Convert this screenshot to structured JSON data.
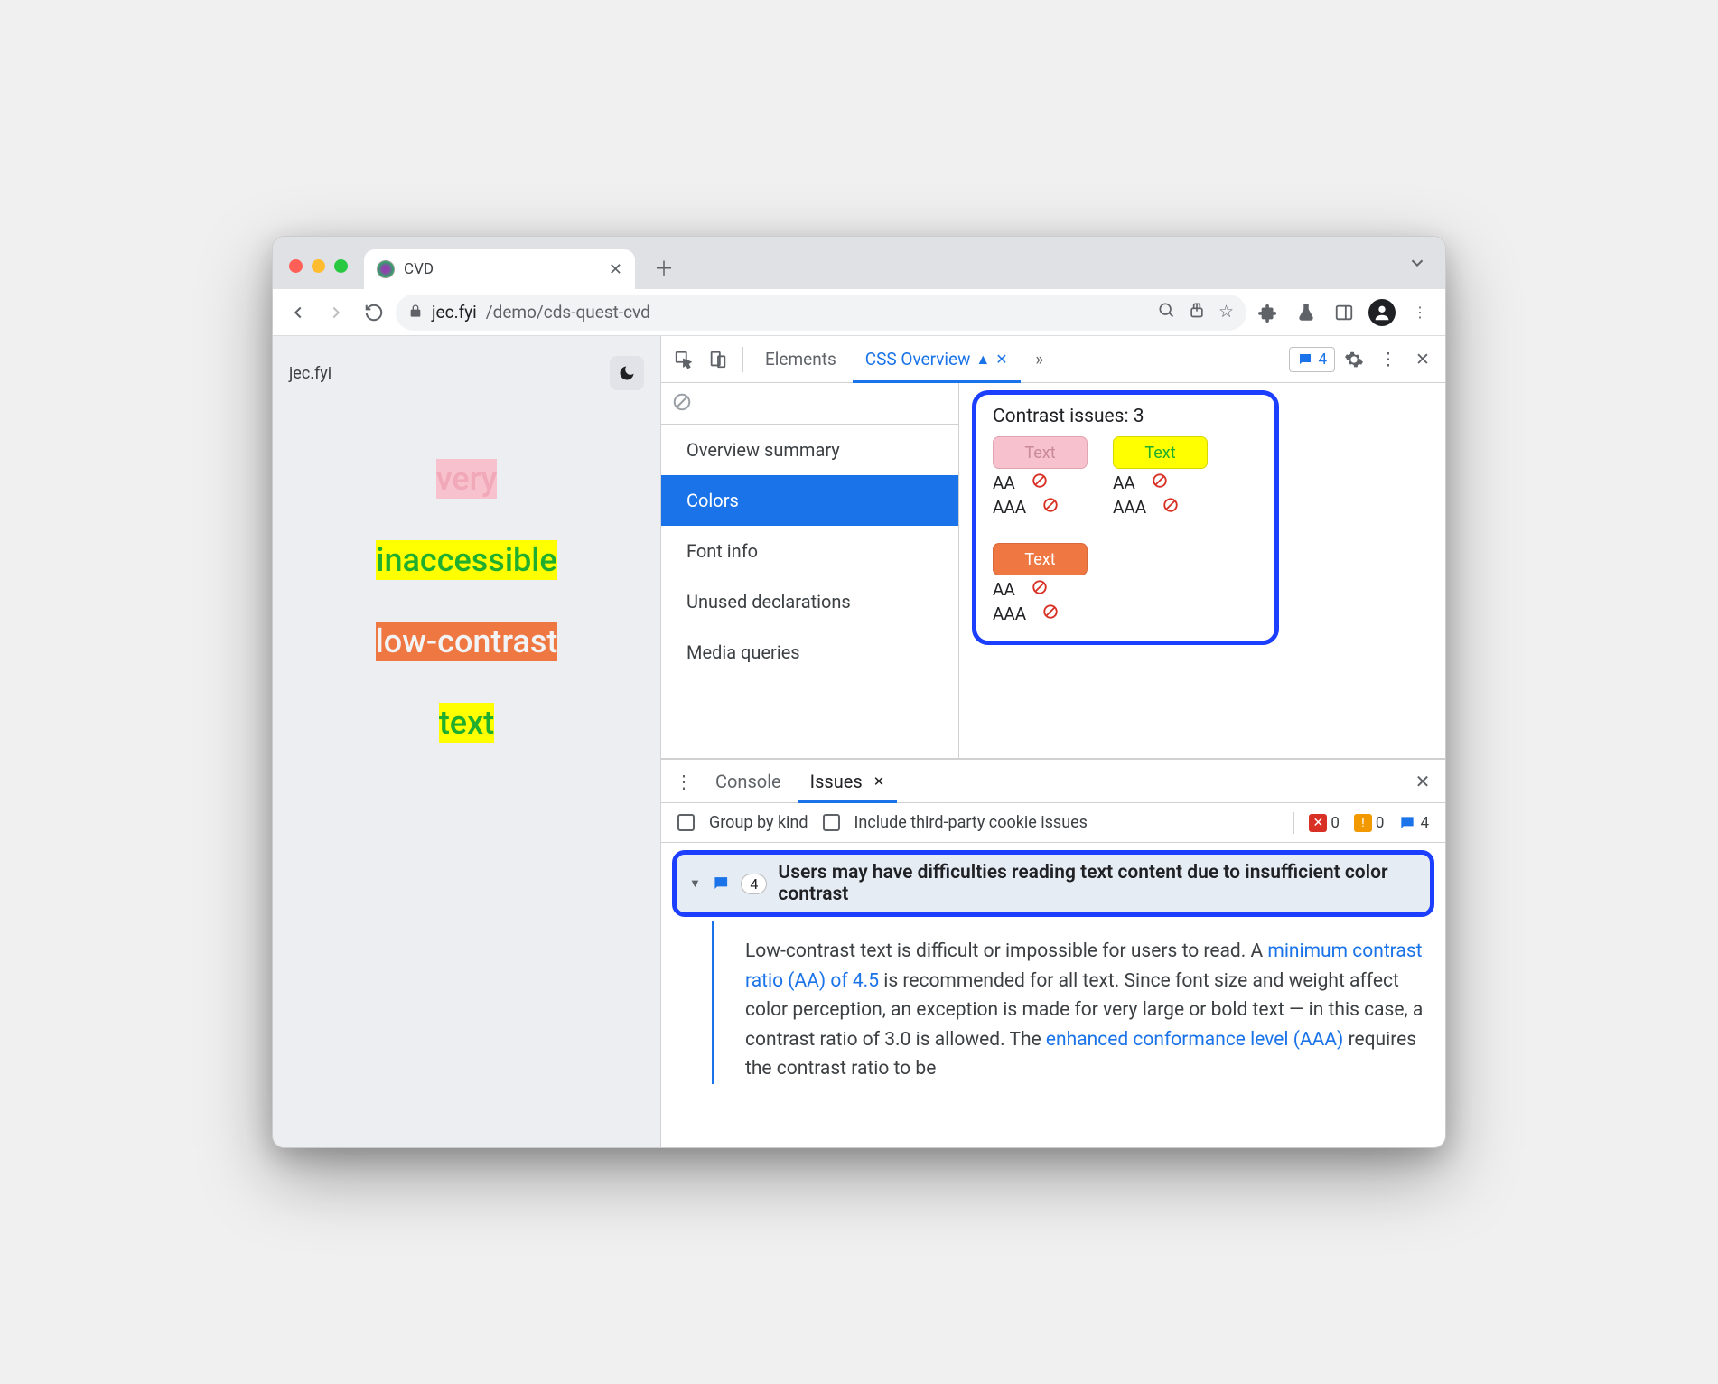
{
  "window": {
    "tab_title": "CVD",
    "url_host": "jec.fyi",
    "url_path": "/demo/cds-quest-cvd"
  },
  "page": {
    "site_label": "jec.fyi",
    "samples": [
      {
        "text": "very",
        "fg": "#f1a8b8",
        "bg": "#f7c1cd"
      },
      {
        "text": "inaccessible",
        "fg": "#1fae2e",
        "bg": "#ffff00"
      },
      {
        "text": "low-contrast",
        "fg": "#f2f3f5",
        "bg": "#ef7742"
      },
      {
        "text": "text",
        "fg": "#1fae2e",
        "bg": "#ffff00"
      }
    ]
  },
  "devtools": {
    "tabs": {
      "elements": "Elements",
      "css_overview": "CSS Overview"
    },
    "issues_badge": "4",
    "nav": {
      "overview": "Overview summary",
      "colors": "Colors",
      "font": "Font info",
      "unused": "Unused declarations",
      "media": "Media queries"
    },
    "contrast": {
      "title": "Contrast issues: 3",
      "aa_label": "AA",
      "aaa_label": "AAA",
      "swatch_text": "Text",
      "swatches": [
        {
          "fg": "#c98a97",
          "bg": "#f7c1cd",
          "border": "#e0a5b1"
        },
        {
          "fg": "#1fae2e",
          "bg": "#ffff00",
          "border": "#d6d600"
        },
        {
          "fg": "#ffffff",
          "bg": "#ef7742",
          "border": "#d8693a"
        }
      ]
    }
  },
  "drawer": {
    "tabs": {
      "console": "Console",
      "issues": "Issues"
    },
    "filters": {
      "group": "Group by kind",
      "third": "Include third-party cookie issues"
    },
    "counters": {
      "err": "0",
      "warn": "0",
      "info": "4"
    },
    "issue": {
      "count": "4",
      "title": "Users may have difficulties reading text content due to insufficient color contrast",
      "body_pre": "Low-contrast text is difficult or impossible for users to read. A ",
      "link1": "minimum contrast ratio (AA) of 4.5",
      "body_mid": " is recommended for all text. Since font size and weight affect color perception, an exception is made for very large or bold text — in this case, a contrast ratio of 3.0 is allowed. The ",
      "link2": "enhanced conformance level (AAA)",
      "body_post": " requires the contrast ratio to be"
    }
  }
}
